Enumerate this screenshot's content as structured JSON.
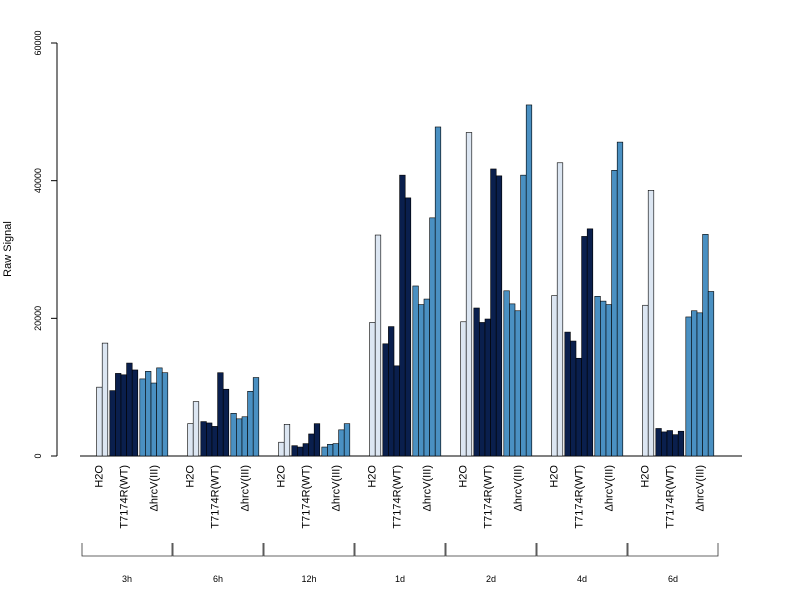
{
  "chart_data": {
    "type": "bar",
    "title": "",
    "ylabel": "Raw Signal",
    "xlabel": "",
    "ylim": [
      0,
      60000
    ],
    "y_ticks": [
      0,
      20000,
      40000,
      60000
    ],
    "grid": false,
    "legend": "none",
    "series": [
      {
        "name": "H2O",
        "color": "#dce6f2"
      },
      {
        "name": "T7174R(WT)",
        "color": "#0a1f4d"
      },
      {
        "name": "ΔhrcV(III)",
        "color": "#4a90c2"
      }
    ],
    "groups": [
      {
        "label": "3h",
        "H2O": [
          0,
          10000,
          16400
        ],
        "T7174R(WT)": [
          9500,
          12000,
          11800,
          13500,
          12500
        ],
        "ΔhrcV(III)": [
          11200,
          12300,
          10600,
          12800,
          12100
        ]
      },
      {
        "label": "6h",
        "H2O": [
          0,
          4700,
          7900
        ],
        "T7174R(WT)": [
          5000,
          4800,
          4300,
          12100,
          9700
        ],
        "ΔhrcV(III)": [
          6200,
          5400,
          5700,
          9400,
          11400
        ]
      },
      {
        "label": "12h",
        "H2O": [
          0,
          2000,
          4600
        ],
        "T7174R(WT)": [
          1500,
          1300,
          1800,
          3200,
          4700
        ],
        "ΔhrcV(III)": [
          1300,
          1700,
          1800,
          3800,
          4700
        ]
      },
      {
        "label": "1d",
        "H2O": [
          0,
          19400,
          32100
        ],
        "T7174R(WT)": [
          16300,
          18800,
          13100,
          40800,
          37500
        ],
        "ΔhrcV(III)": [
          24700,
          22000,
          22800,
          34600,
          47800
        ]
      },
      {
        "label": "2d",
        "H2O": [
          0,
          19500,
          47000
        ],
        "T7174R(WT)": [
          21500,
          19400,
          19900,
          41700,
          40700
        ],
        "ΔhrcV(III)": [
          24000,
          22100,
          21100,
          40800,
          51000
        ]
      },
      {
        "label": "4d",
        "H2O": [
          0,
          23300,
          42600
        ],
        "T7174R(WT)": [
          18000,
          16700,
          14200,
          31900,
          33000
        ],
        "ΔhrcV(III)": [
          23200,
          22500,
          22000,
          41500,
          45600
        ]
      },
      {
        "label": "6d",
        "H2O": [
          0,
          21900,
          38600
        ],
        "T7174R(WT)": [
          4000,
          3500,
          3700,
          3100,
          3600
        ],
        "ΔhrcV(III)": [
          20200,
          21100,
          20800,
          32200,
          23900
        ]
      }
    ]
  }
}
